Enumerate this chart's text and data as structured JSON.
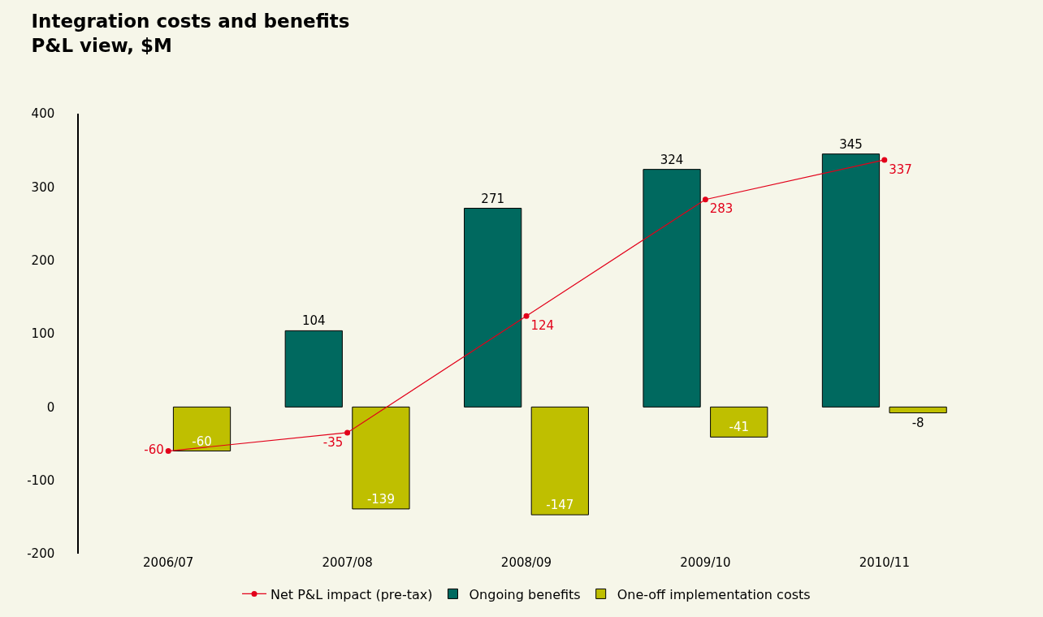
{
  "chart_data": {
    "type": "bar",
    "title": "Integration costs and benefits",
    "subtitle": "P&L view, $M",
    "categories": [
      "2006/07",
      "2007/08",
      "2008/09",
      "2009/10",
      "2010/11"
    ],
    "series": [
      {
        "name": "Net P&L impact (pre-tax)",
        "type": "line",
        "color": "#e2001a",
        "values": [
          -60,
          -35,
          124,
          283,
          337
        ]
      },
      {
        "name": "Ongoing benefits",
        "color": "#00695f",
        "values": [
          null,
          104,
          271,
          324,
          345
        ]
      },
      {
        "name": "One-off implementation costs",
        "color": "#bfbf00",
        "values": [
          -60,
          -139,
          -147,
          -41,
          -8
        ]
      }
    ],
    "ylim": [
      -200,
      400
    ],
    "yticks": [
      -200,
      -100,
      0,
      100,
      200,
      300,
      400
    ],
    "grid": false,
    "legend": "bottom",
    "marker": "circle",
    "data_labels": true
  }
}
